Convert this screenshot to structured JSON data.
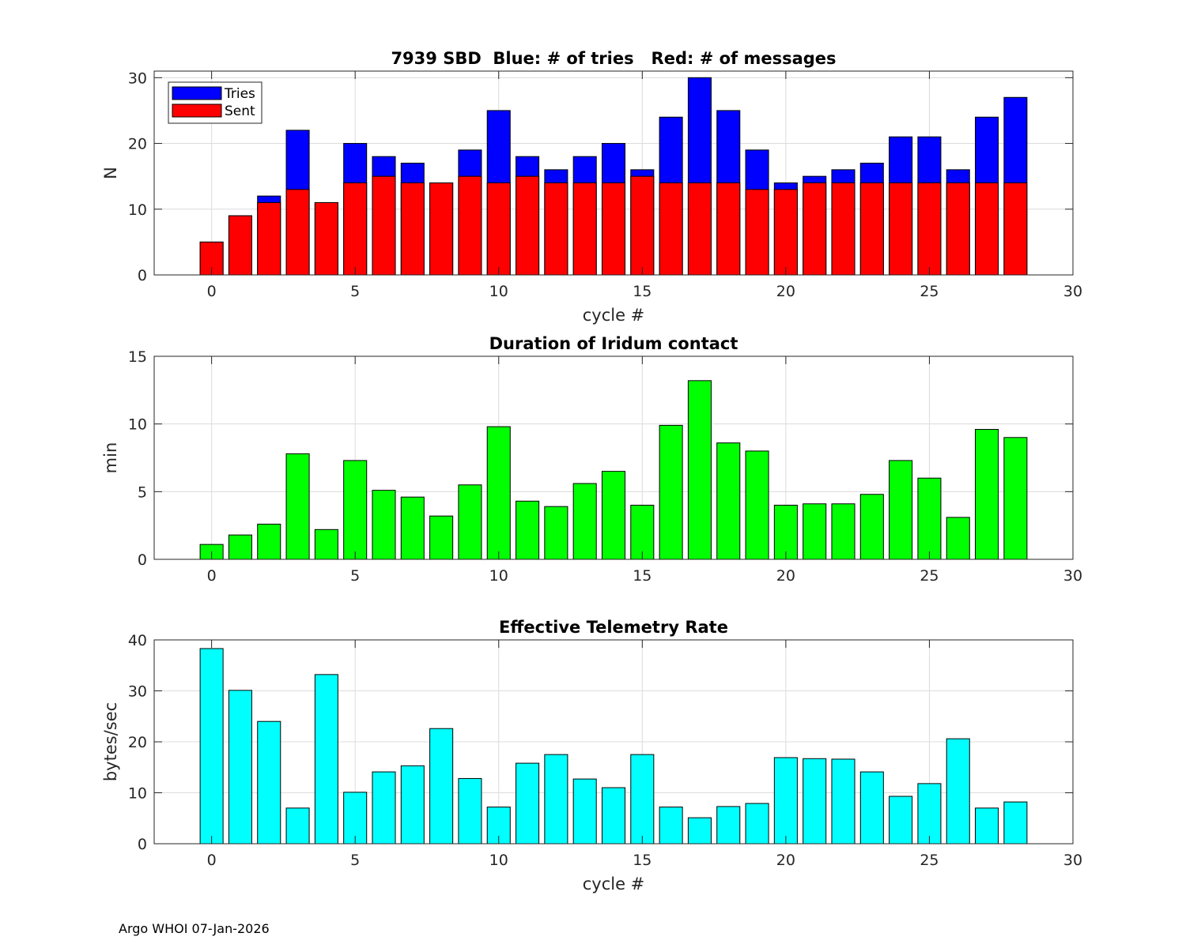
{
  "footer": "Argo WHOI 07-Jan-2026",
  "colors": {
    "tries": "#0000ff",
    "sent": "#ff0000",
    "duration": "#00ff00",
    "rate": "#00ffff",
    "grid": "#dcdcdc"
  },
  "chart_data": [
    {
      "type": "bar",
      "stacked": "overlay",
      "title": "7939 SBD  Blue: # of tries   Red: # of messages",
      "xlabel": "cycle #",
      "ylabel": "N",
      "xlim": [
        -2,
        30
      ],
      "ylim": [
        0,
        31
      ],
      "xticks": [
        0,
        5,
        10,
        15,
        20,
        25,
        30
      ],
      "yticks": [
        0,
        10,
        20,
        30
      ],
      "grid": true,
      "legend_position": "top-left",
      "x": [
        0,
        1,
        2,
        3,
        4,
        5,
        6,
        7,
        8,
        9,
        10,
        11,
        12,
        13,
        14,
        15,
        16,
        17,
        18,
        19,
        20,
        21,
        22,
        23,
        24,
        25,
        26,
        27,
        28
      ],
      "series": [
        {
          "name": "Tries",
          "color": "#0000ff",
          "values": [
            5,
            9,
            12,
            22,
            11,
            20,
            18,
            17,
            14,
            19,
            25,
            18,
            16,
            18,
            20,
            16,
            24,
            30,
            25,
            19,
            14,
            15,
            16,
            17,
            21,
            21,
            16,
            24,
            27
          ]
        },
        {
          "name": "Sent",
          "color": "#ff0000",
          "values": [
            5,
            9,
            11,
            13,
            11,
            14,
            15,
            14,
            14,
            15,
            14,
            15,
            14,
            14,
            14,
            15,
            14,
            14,
            14,
            13,
            13,
            14,
            14,
            14,
            14,
            14,
            14,
            14,
            14
          ]
        }
      ]
    },
    {
      "type": "bar",
      "title": "Duration of Iridum contact",
      "xlabel": "",
      "ylabel": "min",
      "xlim": [
        -2,
        30
      ],
      "ylim": [
        0,
        15
      ],
      "xticks": [
        0,
        5,
        10,
        15,
        20,
        25,
        30
      ],
      "yticks": [
        0,
        5,
        10,
        15
      ],
      "grid": true,
      "x": [
        -1,
        0,
        1,
        2,
        3,
        4,
        5,
        6,
        7,
        8,
        9,
        10,
        11,
        12,
        13,
        14,
        15,
        16,
        17,
        18,
        19,
        20,
        21,
        22,
        23,
        24,
        25,
        26,
        27,
        28
      ],
      "series": [
        {
          "name": "Duration",
          "color": "#00ff00",
          "values": [
            0,
            1.1,
            1.8,
            2.6,
            7.8,
            2.2,
            7.3,
            5.1,
            4.6,
            3.2,
            5.5,
            9.8,
            4.3,
            3.9,
            5.6,
            6.5,
            4.0,
            9.9,
            13.2,
            8.6,
            8.0,
            4.0,
            4.1,
            4.1,
            4.8,
            7.3,
            6.0,
            3.1,
            9.6,
            9.0
          ]
        }
      ]
    },
    {
      "type": "bar",
      "title": "Effective Telemetry Rate",
      "xlabel": "cycle #",
      "ylabel": "bytes/sec",
      "xlim": [
        -2,
        30
      ],
      "ylim": [
        0,
        40
      ],
      "xticks": [
        0,
        5,
        10,
        15,
        20,
        25,
        30
      ],
      "yticks": [
        0,
        10,
        20,
        30,
        40
      ],
      "grid": true,
      "x": [
        0,
        1,
        2,
        3,
        4,
        5,
        6,
        7,
        8,
        9,
        10,
        11,
        12,
        13,
        14,
        15,
        16,
        17,
        18,
        19,
        20,
        21,
        22,
        23,
        24,
        25,
        26,
        27,
        28
      ],
      "series": [
        {
          "name": "Rate",
          "color": "#00ffff",
          "values": [
            38.3,
            30.1,
            24.0,
            7.0,
            33.2,
            10.1,
            14.1,
            15.3,
            22.6,
            12.8,
            7.2,
            15.8,
            17.5,
            12.7,
            11.0,
            17.5,
            7.2,
            5.1,
            7.3,
            7.9,
            16.9,
            16.7,
            16.6,
            14.1,
            9.3,
            11.8,
            20.6,
            7.0,
            8.2
          ]
        }
      ]
    }
  ]
}
